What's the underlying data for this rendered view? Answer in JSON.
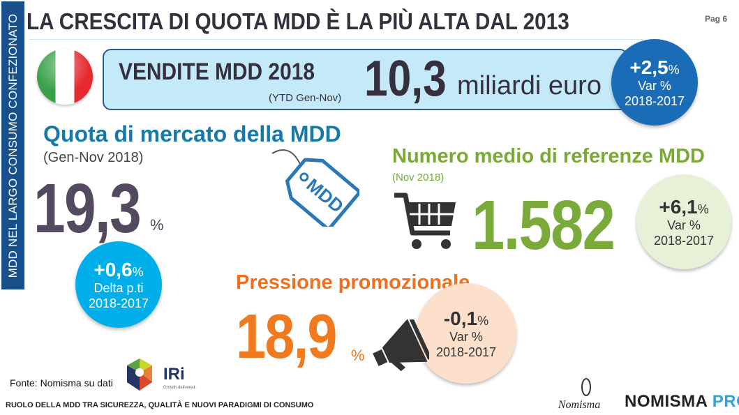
{
  "sidebar_label": "MDD NEL LARGO CONSUMO CONFEZIONATO",
  "title": "LA CRESCITA DI QUOTA MDD È LA PIÙ ALTA DAL 2013",
  "page": "Pag 6",
  "sales": {
    "label": "VENDITE MDD 2018",
    "period": "(YTD Gen-Nov)",
    "value": "10,3",
    "unit": "miliardi euro",
    "badge": {
      "value": "+2,5",
      "pct": "%",
      "label": "Var %",
      "period": "2018-2017"
    }
  },
  "quota": {
    "title": "Quota di mercato della MDD",
    "period": "(Gen-Nov 2018)",
    "value": "19,3",
    "pct": "%",
    "badge": {
      "value": "+0,6",
      "pct": "%",
      "label": "Delta p.ti",
      "period": "2018-2017"
    },
    "tag_label": "MDD"
  },
  "referenze": {
    "title": "Numero medio di referenze MDD",
    "period": "(Nov 2018)",
    "value": "1.582",
    "badge": {
      "value": "+6,1",
      "pct": "%",
      "label": "Var %",
      "period": "2018-2017"
    }
  },
  "promo": {
    "title": "Pressione promozionale",
    "value": "18,9",
    "pct": "%",
    "badge": {
      "value": "-0,1",
      "pct": "%",
      "label": "Var %",
      "period": "2018-2017"
    }
  },
  "source": "Fonte: Nomisma su dati",
  "iri": {
    "name": "IRi",
    "tagline": "Growth delivered."
  },
  "footer": "RUOLO DELLA MDD TRA SICUREZZA, QUALITÀ E NUOVI PARADIGMI DI CONSUMO",
  "nomisma_script": "Nomisma",
  "brand": {
    "name": "NOMISMA",
    "suffix": "PRO"
  },
  "colors": {
    "navy": "#17508a",
    "green": "#7aab3a",
    "orange": "#f27a1e",
    "teal": "#1679a8",
    "cyan": "#00aeea"
  }
}
